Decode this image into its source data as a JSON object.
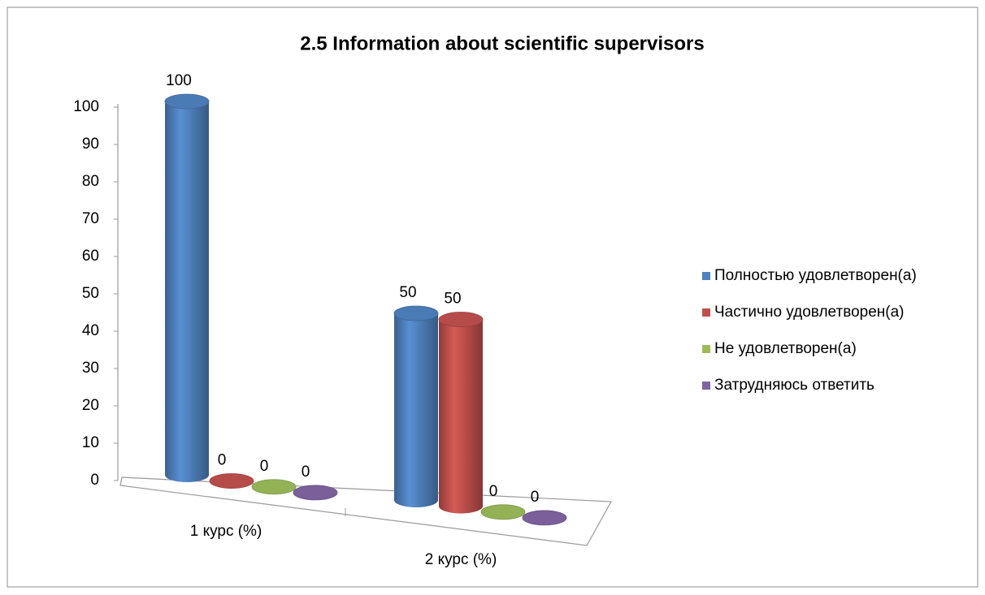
{
  "chart_data": {
    "type": "bar",
    "title": "2.5 Information about scientific supervisors",
    "categories": [
      "1 курс (%)",
      "2 курс (%)"
    ],
    "series": [
      {
        "name": "Полностью удовлетворен(а)",
        "color": "#4f81bd",
        "values": [
          100,
          50
        ]
      },
      {
        "name": "Частично удовлетворен(а)",
        "color": "#c0504d",
        "values": [
          0,
          50
        ]
      },
      {
        "name": "Не удовлетворен(а)",
        "color": "#9bbb59",
        "values": [
          0,
          0
        ]
      },
      {
        "name": "Затрудняюсь ответить",
        "color": "#8064a2",
        "values": [
          0,
          0
        ]
      }
    ],
    "ylim": [
      0,
      100
    ],
    "yticks": [
      0,
      10,
      20,
      30,
      40,
      50,
      60,
      70,
      80,
      90,
      100
    ],
    "legend": "right"
  }
}
